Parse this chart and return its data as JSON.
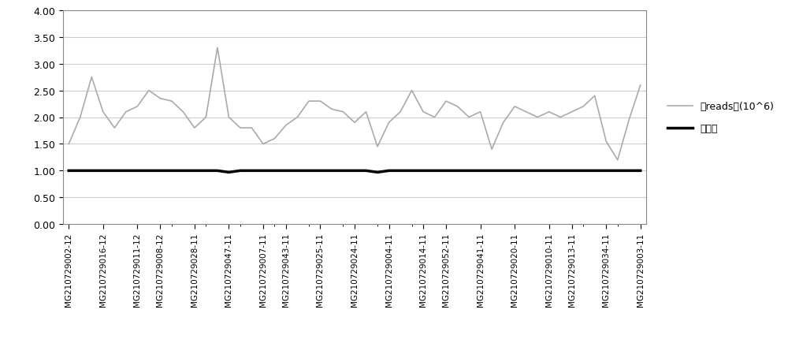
{
  "categories": [
    "MG210729002-12",
    "MG210729016-12",
    "MG210729011-12",
    "MG210729008-12",
    "MG210729028-11",
    "MG210729047-11",
    "MG210729007-11",
    "MG210729043-11",
    "MG210729025-11",
    "MG210729024-11",
    "MG210729004-11",
    "MG210729014-11",
    "MG210729052-11",
    "MG210729041-11",
    "MG210729020-11",
    "MG210729010-11",
    "MG210729013-11",
    "MG210729034-11",
    "MG210729003-11"
  ],
  "reads_values": [
    1.5,
    2.0,
    2.75,
    2.1,
    1.8,
    2.1,
    2.2,
    2.5,
    2.35,
    2.3,
    2.1,
    1.8,
    2.0,
    3.3,
    2.0,
    1.8,
    1.8,
    1.5,
    1.6,
    1.85,
    2.0,
    2.3,
    2.3,
    2.15,
    2.1,
    1.9,
    2.1,
    1.45,
    1.9,
    2.1,
    2.5,
    2.1,
    2.0,
    2.3,
    2.2,
    2.0,
    2.1,
    1.4,
    1.9,
    2.2,
    2.1,
    2.0,
    2.1,
    2.0,
    2.1,
    2.2,
    2.4,
    1.55,
    1.2,
    1.95,
    2.6
  ],
  "detection_values": [
    1.0,
    1.0,
    1.0,
    1.0,
    1.0,
    1.0,
    1.0,
    1.0,
    1.0,
    1.0,
    1.0,
    1.0,
    1.0,
    1.0,
    0.97,
    1.0,
    1.0,
    1.0,
    1.0,
    1.0,
    1.0,
    1.0,
    1.0,
    1.0,
    1.0,
    1.0,
    1.0,
    0.97,
    1.0,
    1.0,
    1.0,
    1.0,
    1.0,
    1.0,
    1.0,
    1.0,
    1.0,
    1.0,
    1.0,
    1.0,
    1.0,
    1.0,
    1.0,
    1.0,
    1.0,
    1.0,
    1.0,
    1.0,
    1.0,
    1.0,
    1.0
  ],
  "line_color_gray": "#aaaaaa",
  "line_color_black": "#000000",
  "ylim": [
    0.0,
    4.0
  ],
  "yticks": [
    0.0,
    0.5,
    1.0,
    1.5,
    2.0,
    2.5,
    3.0,
    3.5,
    4.0
  ],
  "legend_label_gray": "总reads数(10^6)",
  "legend_label_black": "检出率",
  "bg_color": "#ffffff",
  "grid_color": "#cccccc",
  "border_color": "#888888"
}
